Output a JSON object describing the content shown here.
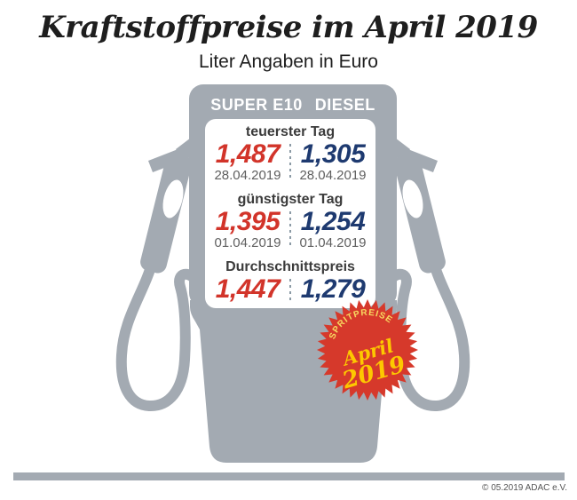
{
  "title": "Kraftstoffpreise im April 2019",
  "subtitle": "Liter Angaben in Euro",
  "pump": {
    "fuel1": "SUPER E10",
    "fuel2": "DIESEL",
    "sections": [
      {
        "label": "teuerster Tag",
        "super_price": "1,487",
        "super_date": "28.04.2019",
        "diesel_price": "1,305",
        "diesel_date": "28.04.2019"
      },
      {
        "label": "günstigster Tag",
        "super_price": "1,395",
        "super_date": "01.04.2019",
        "diesel_price": "1,254",
        "diesel_date": "01.04.2019"
      },
      {
        "label": "Durchschnittspreis",
        "super_price": "1,447",
        "diesel_price": "1,279"
      }
    ]
  },
  "badge": {
    "arc_text": "SPRITPREISE",
    "month": "April",
    "year": "2019"
  },
  "footer": {
    "copyright": "© 05.2019 ADAC e.V."
  },
  "colors": {
    "super_red": "#d2342a",
    "diesel_blue": "#1e3a70",
    "pump_gray": "#a3aab2",
    "badge_red": "#d6392b",
    "badge_yellow": "#fdc800",
    "badge_arc_yellow": "#f8d960",
    "bar_gray": "#a3aab2"
  },
  "chart_data": {
    "type": "table",
    "title": "Kraftstoffpreise im April 2019",
    "subtitle": "Liter Angaben in Euro",
    "unit": "Euro pro Liter",
    "columns": [
      "SUPER E10",
      "DIESEL"
    ],
    "rows": [
      {
        "label": "teuerster Tag",
        "super_e10": 1.487,
        "super_e10_date": "28.04.2019",
        "diesel": 1.305,
        "diesel_date": "28.04.2019"
      },
      {
        "label": "günstigster Tag",
        "super_e10": 1.395,
        "super_e10_date": "01.04.2019",
        "diesel": 1.254,
        "diesel_date": "01.04.2019"
      },
      {
        "label": "Durchschnittspreis",
        "super_e10": 1.447,
        "diesel": 1.279
      }
    ]
  }
}
